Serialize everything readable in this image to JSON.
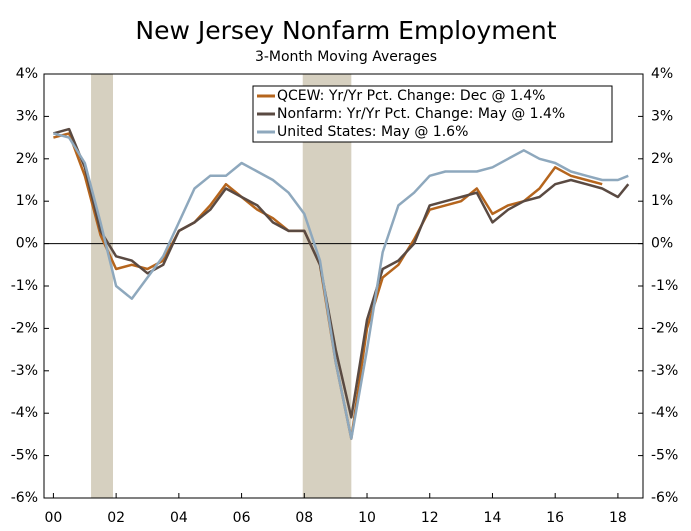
{
  "chart_data": {
    "type": "line",
    "title": "New Jersey Nonfarm Employment",
    "subtitle": "3-Month Moving Averages",
    "x": [
      2000,
      2000.5,
      2001,
      2001.5,
      2002,
      2002.5,
      2003,
      2003.5,
      2004,
      2004.5,
      2005,
      2005.5,
      2006,
      2006.5,
      2007,
      2007.5,
      2008,
      2008.5,
      2009,
      2009.5,
      2010,
      2010.5,
      2011,
      2011.5,
      2012,
      2012.5,
      2013,
      2013.5,
      2014,
      2014.5,
      2015,
      2015.5,
      2016,
      2016.5,
      2017,
      2017.5,
      2018,
      2018.33
    ],
    "series": [
      {
        "name": "QCEW: Yr/Yr Pct. Change: Dec @ 1.4%",
        "color": "#b5651d",
        "values": [
          2.5,
          2.6,
          1.6,
          0.2,
          -0.6,
          -0.5,
          -0.6,
          -0.4,
          0.3,
          0.5,
          0.9,
          1.4,
          1.1,
          0.8,
          0.6,
          0.3,
          0.3,
          -0.5,
          -2.8,
          -4.6,
          -2.0,
          -0.8,
          -0.5,
          0.1,
          0.8,
          0.9,
          1.0,
          1.3,
          0.7,
          0.9,
          1.0,
          1.3,
          1.8,
          1.6,
          1.5,
          1.4,
          null,
          null
        ]
      },
      {
        "name": "Nonfarm: Yr/Yr Pct. Change: May @ 1.4%",
        "color": "#5a4a42",
        "values": [
          2.6,
          2.7,
          1.8,
          0.3,
          -0.3,
          -0.4,
          -0.7,
          -0.5,
          0.3,
          0.5,
          0.8,
          1.3,
          1.1,
          0.9,
          0.5,
          0.3,
          0.3,
          -0.5,
          -2.5,
          -4.1,
          -1.8,
          -0.6,
          -0.4,
          0.0,
          0.9,
          1.0,
          1.1,
          1.2,
          0.5,
          0.8,
          1.0,
          1.1,
          1.4,
          1.5,
          1.4,
          1.3,
          1.1,
          1.4
        ]
      },
      {
        "name": "United States: May @ 1.6%",
        "color": "#8ea8bd",
        "values": [
          2.6,
          2.5,
          1.9,
          0.5,
          -1.0,
          -1.3,
          -0.8,
          -0.3,
          0.5,
          1.3,
          1.6,
          1.6,
          1.9,
          1.7,
          1.5,
          1.2,
          0.7,
          -0.4,
          -2.8,
          -4.6,
          -2.5,
          -0.2,
          0.9,
          1.2,
          1.6,
          1.7,
          1.7,
          1.7,
          1.8,
          2.0,
          2.2,
          2.0,
          1.9,
          1.7,
          1.6,
          1.5,
          1.5,
          1.6
        ]
      }
    ],
    "shaded_periods": [
      [
        2001.2,
        2001.9
      ],
      [
        2007.95,
        2009.5
      ]
    ],
    "shade_color": "#d6d0c0",
    "xlim": [
      1999.7,
      2018.8
    ],
    "xticks": [
      {
        "value": 2000,
        "label": "00"
      },
      {
        "value": 2002,
        "label": "02"
      },
      {
        "value": 2004,
        "label": "04"
      },
      {
        "value": 2006,
        "label": "06"
      },
      {
        "value": 2008,
        "label": "08"
      },
      {
        "value": 2010,
        "label": "10"
      },
      {
        "value": 2012,
        "label": "12"
      },
      {
        "value": 2014,
        "label": "14"
      },
      {
        "value": 2016,
        "label": "16"
      },
      {
        "value": 2018,
        "label": "18"
      }
    ],
    "ylim": [
      -6,
      4
    ],
    "yticks": [
      {
        "value": 4,
        "label": "4%"
      },
      {
        "value": 3,
        "label": "3%"
      },
      {
        "value": 2,
        "label": "2%"
      },
      {
        "value": 1,
        "label": "1%"
      },
      {
        "value": 0,
        "label": "0%"
      },
      {
        "value": -1,
        "label": "-1%"
      },
      {
        "value": -2,
        "label": "-2%"
      },
      {
        "value": -3,
        "label": "-3%"
      },
      {
        "value": -4,
        "label": "-4%"
      },
      {
        "value": -5,
        "label": "-5%"
      },
      {
        "value": -6,
        "label": "-6%"
      }
    ],
    "y2lim": [
      -6,
      4
    ],
    "y2ticks": [
      {
        "value": 4,
        "label": "4%"
      },
      {
        "value": 3,
        "label": "3%"
      },
      {
        "value": 2,
        "label": "2%"
      },
      {
        "value": 1,
        "label": "1%"
      },
      {
        "value": 0,
        "label": "0%"
      },
      {
        "value": -1,
        "label": "-1%"
      },
      {
        "value": -2,
        "label": "-2%"
      },
      {
        "value": -3,
        "label": "-3%"
      },
      {
        "value": -4,
        "label": "-4%"
      },
      {
        "value": -5,
        "label": "-5%"
      },
      {
        "value": -6,
        "label": "-6%"
      }
    ],
    "legend": "upper right"
  }
}
